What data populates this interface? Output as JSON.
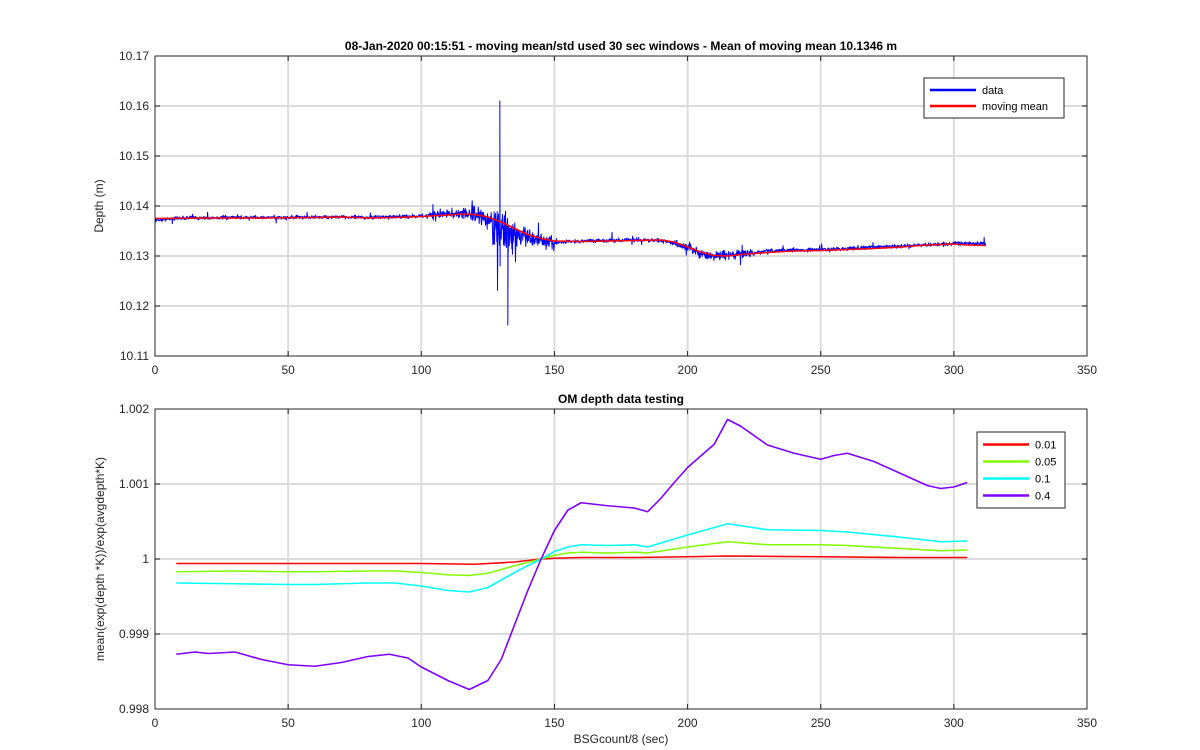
{
  "chart_data": [
    {
      "type": "line",
      "title": "08-Jan-2020 00:15:51 - moving mean/std used 30 sec windows - Mean of moving mean 10.1346 m",
      "xlabel": "",
      "ylabel": "Depth (m)",
      "xlim": [
        0,
        350
      ],
      "ylim": [
        10.11,
        10.17
      ],
      "xticks": [
        0,
        50,
        100,
        150,
        200,
        250,
        300,
        350
      ],
      "yticks": [
        10.11,
        10.12,
        10.13,
        10.14,
        10.15,
        10.16,
        10.17
      ],
      "ytick_labels": [
        "10.11",
        "10.12",
        "10.13",
        "10.14",
        "10.15",
        "10.16",
        "10.17"
      ],
      "grid": true,
      "legend_position": "top-right",
      "series": [
        {
          "name": "data",
          "color": "#0000ff",
          "noisy": true,
          "x": [
            0,
            10,
            20,
            30,
            40,
            50,
            60,
            70,
            80,
            90,
            100,
            105,
            110,
            115,
            120,
            125,
            128,
            130,
            133,
            137,
            140,
            145,
            150,
            160,
            170,
            180,
            190,
            195,
            200,
            205,
            210,
            215,
            220,
            225,
            230,
            240,
            250,
            260,
            270,
            280,
            290,
            300,
            305,
            312
          ],
          "y": [
            10.1372,
            10.1376,
            10.1376,
            10.1377,
            10.1377,
            10.1377,
            10.1378,
            10.1378,
            10.1377,
            10.1378,
            10.138,
            10.1382,
            10.1385,
            10.1385,
            10.1383,
            10.1372,
            10.136,
            10.135,
            10.1345,
            10.1342,
            10.1338,
            10.1332,
            10.1327,
            10.133,
            10.1331,
            10.1332,
            10.1331,
            10.1325,
            10.1318,
            10.1305,
            10.13,
            10.1302,
            10.1305,
            10.1306,
            10.131,
            10.1312,
            10.1313,
            10.1315,
            10.1318,
            10.132,
            10.1322,
            10.1325,
            10.1325,
            10.1325
          ],
          "min": 10.1162,
          "max": 10.161
        },
        {
          "name": "moving mean",
          "color": "#ff0000",
          "x": [
            0,
            20,
            40,
            60,
            70,
            80,
            90,
            100,
            110,
            115,
            120,
            125,
            130,
            135,
            140,
            145,
            150,
            160,
            170,
            180,
            190,
            195,
            200,
            205,
            210,
            215,
            220,
            230,
            240,
            250,
            260,
            270,
            280,
            290,
            300,
            305,
            312
          ],
          "y": [
            10.1375,
            10.1376,
            10.1376,
            10.1377,
            10.1378,
            10.1376,
            10.1377,
            10.1379,
            10.1382,
            10.1384,
            10.1383,
            10.1378,
            10.1368,
            10.1355,
            10.1343,
            10.1335,
            10.133,
            10.1329,
            10.133,
            10.1331,
            10.1332,
            10.1328,
            10.1318,
            10.1308,
            10.1301,
            10.13,
            10.1303,
            10.1307,
            10.131,
            10.1311,
            10.1313,
            10.1315,
            10.1318,
            10.1322,
            10.1324,
            10.1322,
            10.1321
          ]
        }
      ]
    },
    {
      "type": "line",
      "title": "OM depth data testing",
      "xlabel": "BSGcount/8 (sec)",
      "ylabel": "mean(exp(depth *K))/exp(avgdepth*K)",
      "xlim": [
        0,
        350
      ],
      "ylim": [
        0.998,
        1.002
      ],
      "xticks": [
        0,
        50,
        100,
        150,
        200,
        250,
        300,
        350
      ],
      "yticks": [
        0.998,
        0.999,
        1.0,
        1.001,
        1.002
      ],
      "ytick_labels": [
        "0.998",
        "0.999",
        "1",
        "1.001",
        "1.002"
      ],
      "grid": true,
      "legend_position": "top-right",
      "series": [
        {
          "name": "0.01",
          "color": "#ff0000",
          "x": [
            8,
            50,
            100,
            120,
            135,
            145,
            150,
            160,
            180,
            200,
            215,
            250,
            280,
            305
          ],
          "y": [
            0.99994,
            0.99994,
            0.99994,
            0.99993,
            0.99996,
            1.0,
            1.00001,
            1.00002,
            1.00002,
            1.00003,
            1.00004,
            1.00003,
            1.00002,
            1.00002
          ]
        },
        {
          "name": "0.05",
          "color": "#80ff00",
          "x": [
            8,
            30,
            50,
            60,
            80,
            90,
            100,
            110,
            118,
            125,
            135,
            145,
            150,
            155,
            160,
            170,
            180,
            185,
            200,
            215,
            230,
            250,
            260,
            280,
            295,
            305
          ],
          "y": [
            0.99983,
            0.99984,
            0.99983,
            0.99983,
            0.99984,
            0.99984,
            0.99982,
            0.99979,
            0.99978,
            0.99981,
            0.99991,
            1.0,
            1.00005,
            1.00008,
            1.00009,
            1.00008,
            1.00009,
            1.00008,
            1.00016,
            1.00023,
            1.00019,
            1.00019,
            1.00018,
            1.00014,
            1.00011,
            1.00012
          ]
        },
        {
          "name": "0.1",
          "color": "#00ffff",
          "x": [
            8,
            30,
            50,
            60,
            80,
            90,
            100,
            110,
            118,
            125,
            135,
            145,
            150,
            155,
            160,
            170,
            180,
            185,
            200,
            215,
            230,
            250,
            260,
            280,
            295,
            305
          ],
          "y": [
            0.99968,
            0.99967,
            0.99966,
            0.99966,
            0.99968,
            0.99968,
            0.99964,
            0.99958,
            0.99956,
            0.99962,
            0.99982,
            1.0,
            1.0001,
            1.00016,
            1.00019,
            1.00018,
            1.00019,
            1.00016,
            1.00032,
            1.00047,
            1.00039,
            1.00038,
            1.00036,
            1.00029,
            1.00023,
            1.00024
          ]
        },
        {
          "name": "0.4",
          "color": "#8000ff",
          "x": [
            8,
            15,
            20,
            30,
            40,
            50,
            60,
            70,
            80,
            88,
            95,
            100,
            110,
            118,
            125,
            130,
            135,
            140,
            145,
            150,
            155,
            160,
            165,
            170,
            180,
            185,
            190,
            195,
            200,
            210,
            215,
            220,
            230,
            240,
            250,
            255,
            260,
            270,
            280,
            290,
            295,
            300,
            305
          ],
          "y": [
            0.99873,
            0.99876,
            0.99874,
            0.99876,
            0.99866,
            0.99859,
            0.99857,
            0.99862,
            0.9987,
            0.99873,
            0.99868,
            0.99856,
            0.99838,
            0.99826,
            0.99838,
            0.99866,
            0.99912,
            0.99958,
            1.0,
            1.00038,
            1.00065,
            1.00075,
            1.00073,
            1.00071,
            1.00068,
            1.00063,
            1.00081,
            1.00102,
            1.00122,
            1.00153,
            1.00186,
            1.00177,
            1.00152,
            1.00141,
            1.00133,
            1.00138,
            1.00141,
            1.0013,
            1.00114,
            1.00098,
            1.00094,
            1.00096,
            1.00102
          ]
        }
      ]
    }
  ]
}
